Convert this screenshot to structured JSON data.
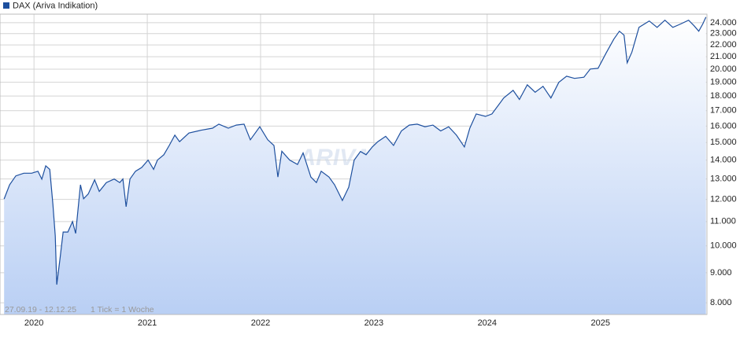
{
  "chart_data": {
    "type": "line",
    "series": [
      {
        "name": "DAX (Ariva Indikation)",
        "color": "#1d4f9e",
        "values": [
          12020,
          12710,
          13160,
          13300,
          13300,
          13400,
          12990,
          13690,
          13500,
          11770,
          10400,
          8590,
          9480,
          10560,
          10560,
          11000,
          10500,
          12710,
          12030,
          12260,
          12960,
          12380,
          12820,
          13000,
          12820,
          13000,
          11660,
          13000,
          13400,
          13600,
          14000,
          13500,
          14000,
          14300,
          14830,
          15440,
          15050,
          15570,
          15740,
          15870,
          16120,
          15870,
          16060,
          16120,
          15160,
          15960,
          15160,
          14830,
          13100,
          14500,
          14000,
          13760,
          14400,
          13100,
          12820,
          13400,
          13100,
          12710,
          11950,
          12590,
          14000,
          14480,
          14300,
          14740,
          15050,
          15370,
          14830,
          15700,
          16060,
          16120,
          15960,
          16060,
          15700,
          15960,
          15440,
          14740,
          15870,
          16780,
          16620,
          16780,
          17860,
          18410,
          17760,
          18810,
          18270,
          18700,
          17860,
          18990,
          19460,
          19290,
          19380,
          20010,
          20070,
          21290,
          22500,
          23210,
          22860,
          20510,
          21390,
          23570,
          24160,
          23570,
          24240,
          23570,
          23880,
          24240,
          23720,
          23210,
          23880,
          24540
        ]
      }
    ],
    "x": [
      2019.736,
      2019.785,
      2019.84,
      2019.91,
      2019.979,
      2020.035,
      2020.069,
      2020.104,
      2020.139,
      2020.167,
      2020.188,
      2020.201,
      2020.229,
      2020.257,
      2020.299,
      2020.34,
      2020.368,
      2020.41,
      2020.438,
      2020.479,
      2020.535,
      2020.576,
      2020.639,
      2020.708,
      2020.757,
      2020.785,
      2020.813,
      2020.847,
      2020.896,
      2020.951,
      2021.007,
      2021.056,
      2021.09,
      2021.146,
      2021.194,
      2021.243,
      2021.285,
      2021.368,
      2021.472,
      2021.576,
      2021.632,
      2021.715,
      2021.785,
      2021.854,
      2021.91,
      2021.993,
      2022.063,
      2022.118,
      2022.153,
      2022.188,
      2022.257,
      2022.326,
      2022.375,
      2022.444,
      2022.493,
      2022.535,
      2022.604,
      2022.653,
      2022.722,
      2022.778,
      2022.826,
      2022.882,
      2022.931,
      2022.986,
      2023.035,
      2023.104,
      2023.174,
      2023.243,
      2023.313,
      2023.382,
      2023.451,
      2023.521,
      2023.59,
      2023.66,
      2023.729,
      2023.799,
      2023.847,
      2023.903,
      2023.986,
      2024.042,
      2024.146,
      2024.229,
      2024.285,
      2024.354,
      2024.424,
      2024.493,
      2024.563,
      2024.632,
      2024.701,
      2024.771,
      2024.854,
      2024.91,
      2024.979,
      2025.049,
      2025.118,
      2025.167,
      2025.208,
      2025.236,
      2025.278,
      2025.34,
      2025.431,
      2025.5,
      2025.569,
      2025.639,
      2025.708,
      2025.778,
      2025.826,
      2025.868,
      2025.903,
      2025.931
    ],
    "xlim": [
      2019.7,
      2025.94
    ],
    "xticks": [
      2020,
      2021,
      2022,
      2023,
      2024,
      2025
    ],
    "ylim": [
      7640,
      24820
    ],
    "log_scale": true,
    "yticks": [
      {
        "value": 8000,
        "label": "8.000"
      },
      {
        "value": 9000,
        "label": "9.000"
      },
      {
        "value": 10000,
        "label": "10.000"
      },
      {
        "value": 11000,
        "label": "11.000"
      },
      {
        "value": 12000,
        "label": "12.000"
      },
      {
        "value": 13000,
        "label": "13.000"
      },
      {
        "value": 14000,
        "label": "14.000"
      },
      {
        "value": 15000,
        "label": "15.000"
      },
      {
        "value": 16000,
        "label": "16.000"
      },
      {
        "value": 17000,
        "label": "17.000"
      },
      {
        "value": 18000,
        "label": "18.000"
      },
      {
        "value": 19000,
        "label": "19.000"
      },
      {
        "value": 20000,
        "label": "20.000"
      },
      {
        "value": 21000,
        "label": "21.000"
      },
      {
        "value": 22000,
        "label": "22.000"
      },
      {
        "value": 23000,
        "label": "23.000"
      },
      {
        "value": 24000,
        "label": "24.000"
      }
    ],
    "grid": true,
    "area_fill": "#b9cff4",
    "date_range_note": "27.09.19 - 12.12.25",
    "tick_note": "1 Tick = 1 Woche",
    "watermark": "ARIVA.DE"
  }
}
